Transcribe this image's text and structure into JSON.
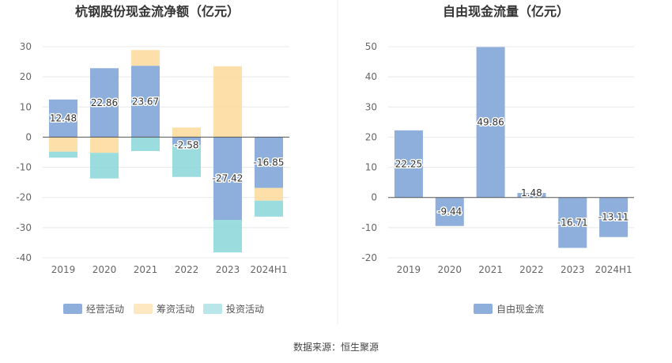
{
  "chart_data": [
    {
      "type": "bar",
      "stacked": true,
      "title": "杭钢股份现金流净额（亿元）",
      "categories": [
        "2019",
        "2020",
        "2021",
        "2022",
        "2023",
        "2024H1"
      ],
      "ylim": [
        -40,
        30
      ],
      "yticks": [
        "30",
        "20",
        "10",
        "0",
        "-10",
        "-20",
        "-30",
        "-40"
      ],
      "grid": true,
      "legend_position": "bottom",
      "series": [
        {
          "name": "经营活动",
          "color": "#8eaedb",
          "values": [
            12.48,
            22.86,
            23.67,
            -2.58,
            -27.42,
            -16.85
          ]
        },
        {
          "name": "筹资活动",
          "color": "#fdd99a",
          "values": [
            -4.8,
            -5.2,
            5.2,
            3.2,
            23.5,
            -4.2
          ]
        },
        {
          "name": "投资活动",
          "color": "#8ad6d8",
          "values": [
            -2.0,
            -8.5,
            -4.6,
            -10.6,
            -10.8,
            -5.3
          ]
        }
      ],
      "data_labels": [
        "12.48",
        "22.86",
        "23.67",
        "-2.58",
        "-27.42",
        "-16.85"
      ]
    },
    {
      "type": "bar",
      "title": "自由现金流量（亿元）",
      "categories": [
        "2019",
        "2020",
        "2021",
        "2022",
        "2023",
        "2024H1"
      ],
      "ylim": [
        -20,
        50
      ],
      "yticks": [
        "50",
        "40",
        "30",
        "20",
        "10",
        "0",
        "-10",
        "-20"
      ],
      "grid": true,
      "legend_position": "bottom",
      "series": [
        {
          "name": "自由现金流",
          "color": "#8eaedb",
          "values": [
            22.25,
            -9.44,
            49.86,
            1.48,
            -16.71,
            -13.11
          ]
        }
      ],
      "data_labels": [
        "22.25",
        "-9.44",
        "49.86",
        "1.48",
        "-16.71",
        "-13.11"
      ]
    }
  ],
  "source": "数据来源：恒生聚源"
}
